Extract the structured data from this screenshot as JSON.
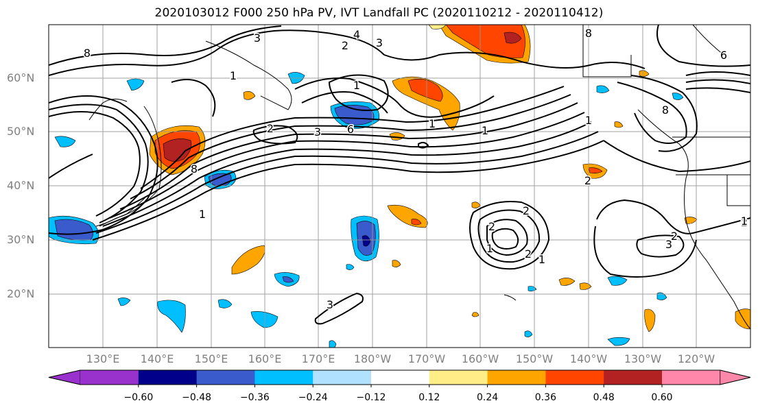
{
  "title": "2020103012 F000 250 hPa PV, IVT Landfall PC (2020110212 - 2020110412)",
  "lat_labels": [
    "60°N",
    "50°N",
    "40°N",
    "30°N",
    "20°N"
  ],
  "lon_labels": [
    "130°E",
    "140°E",
    "150°E",
    "160°E",
    "170°E",
    "180°W",
    "170°W",
    "160°W",
    "150°W",
    "140°W",
    "130°W",
    "120°W"
  ],
  "contour_labels": [
    "3",
    "4",
    "2",
    "3",
    "8",
    "8",
    "6",
    "1",
    "1",
    "2",
    "3",
    "6",
    "1",
    "1",
    "1",
    "8",
    "8",
    "2",
    "1",
    "2",
    "2",
    "1",
    "2",
    "3",
    "1",
    "2",
    "2",
    "3",
    "1"
  ],
  "colorbar": {
    "tick_labels": [
      "−0.60",
      "−0.48",
      "−0.36",
      "−0.24",
      "−0.12",
      "0.12",
      "0.24",
      "0.36",
      "0.48",
      "0.60"
    ],
    "colors": [
      "#9932CC",
      "#00008B",
      "#3A5BCB",
      "#00BFFF",
      "#B0E2FF",
      "#FFFFFF",
      "#FFEE88",
      "#FFA500",
      "#FF4500",
      "#B22222",
      "#FF88AA"
    ]
  }
}
